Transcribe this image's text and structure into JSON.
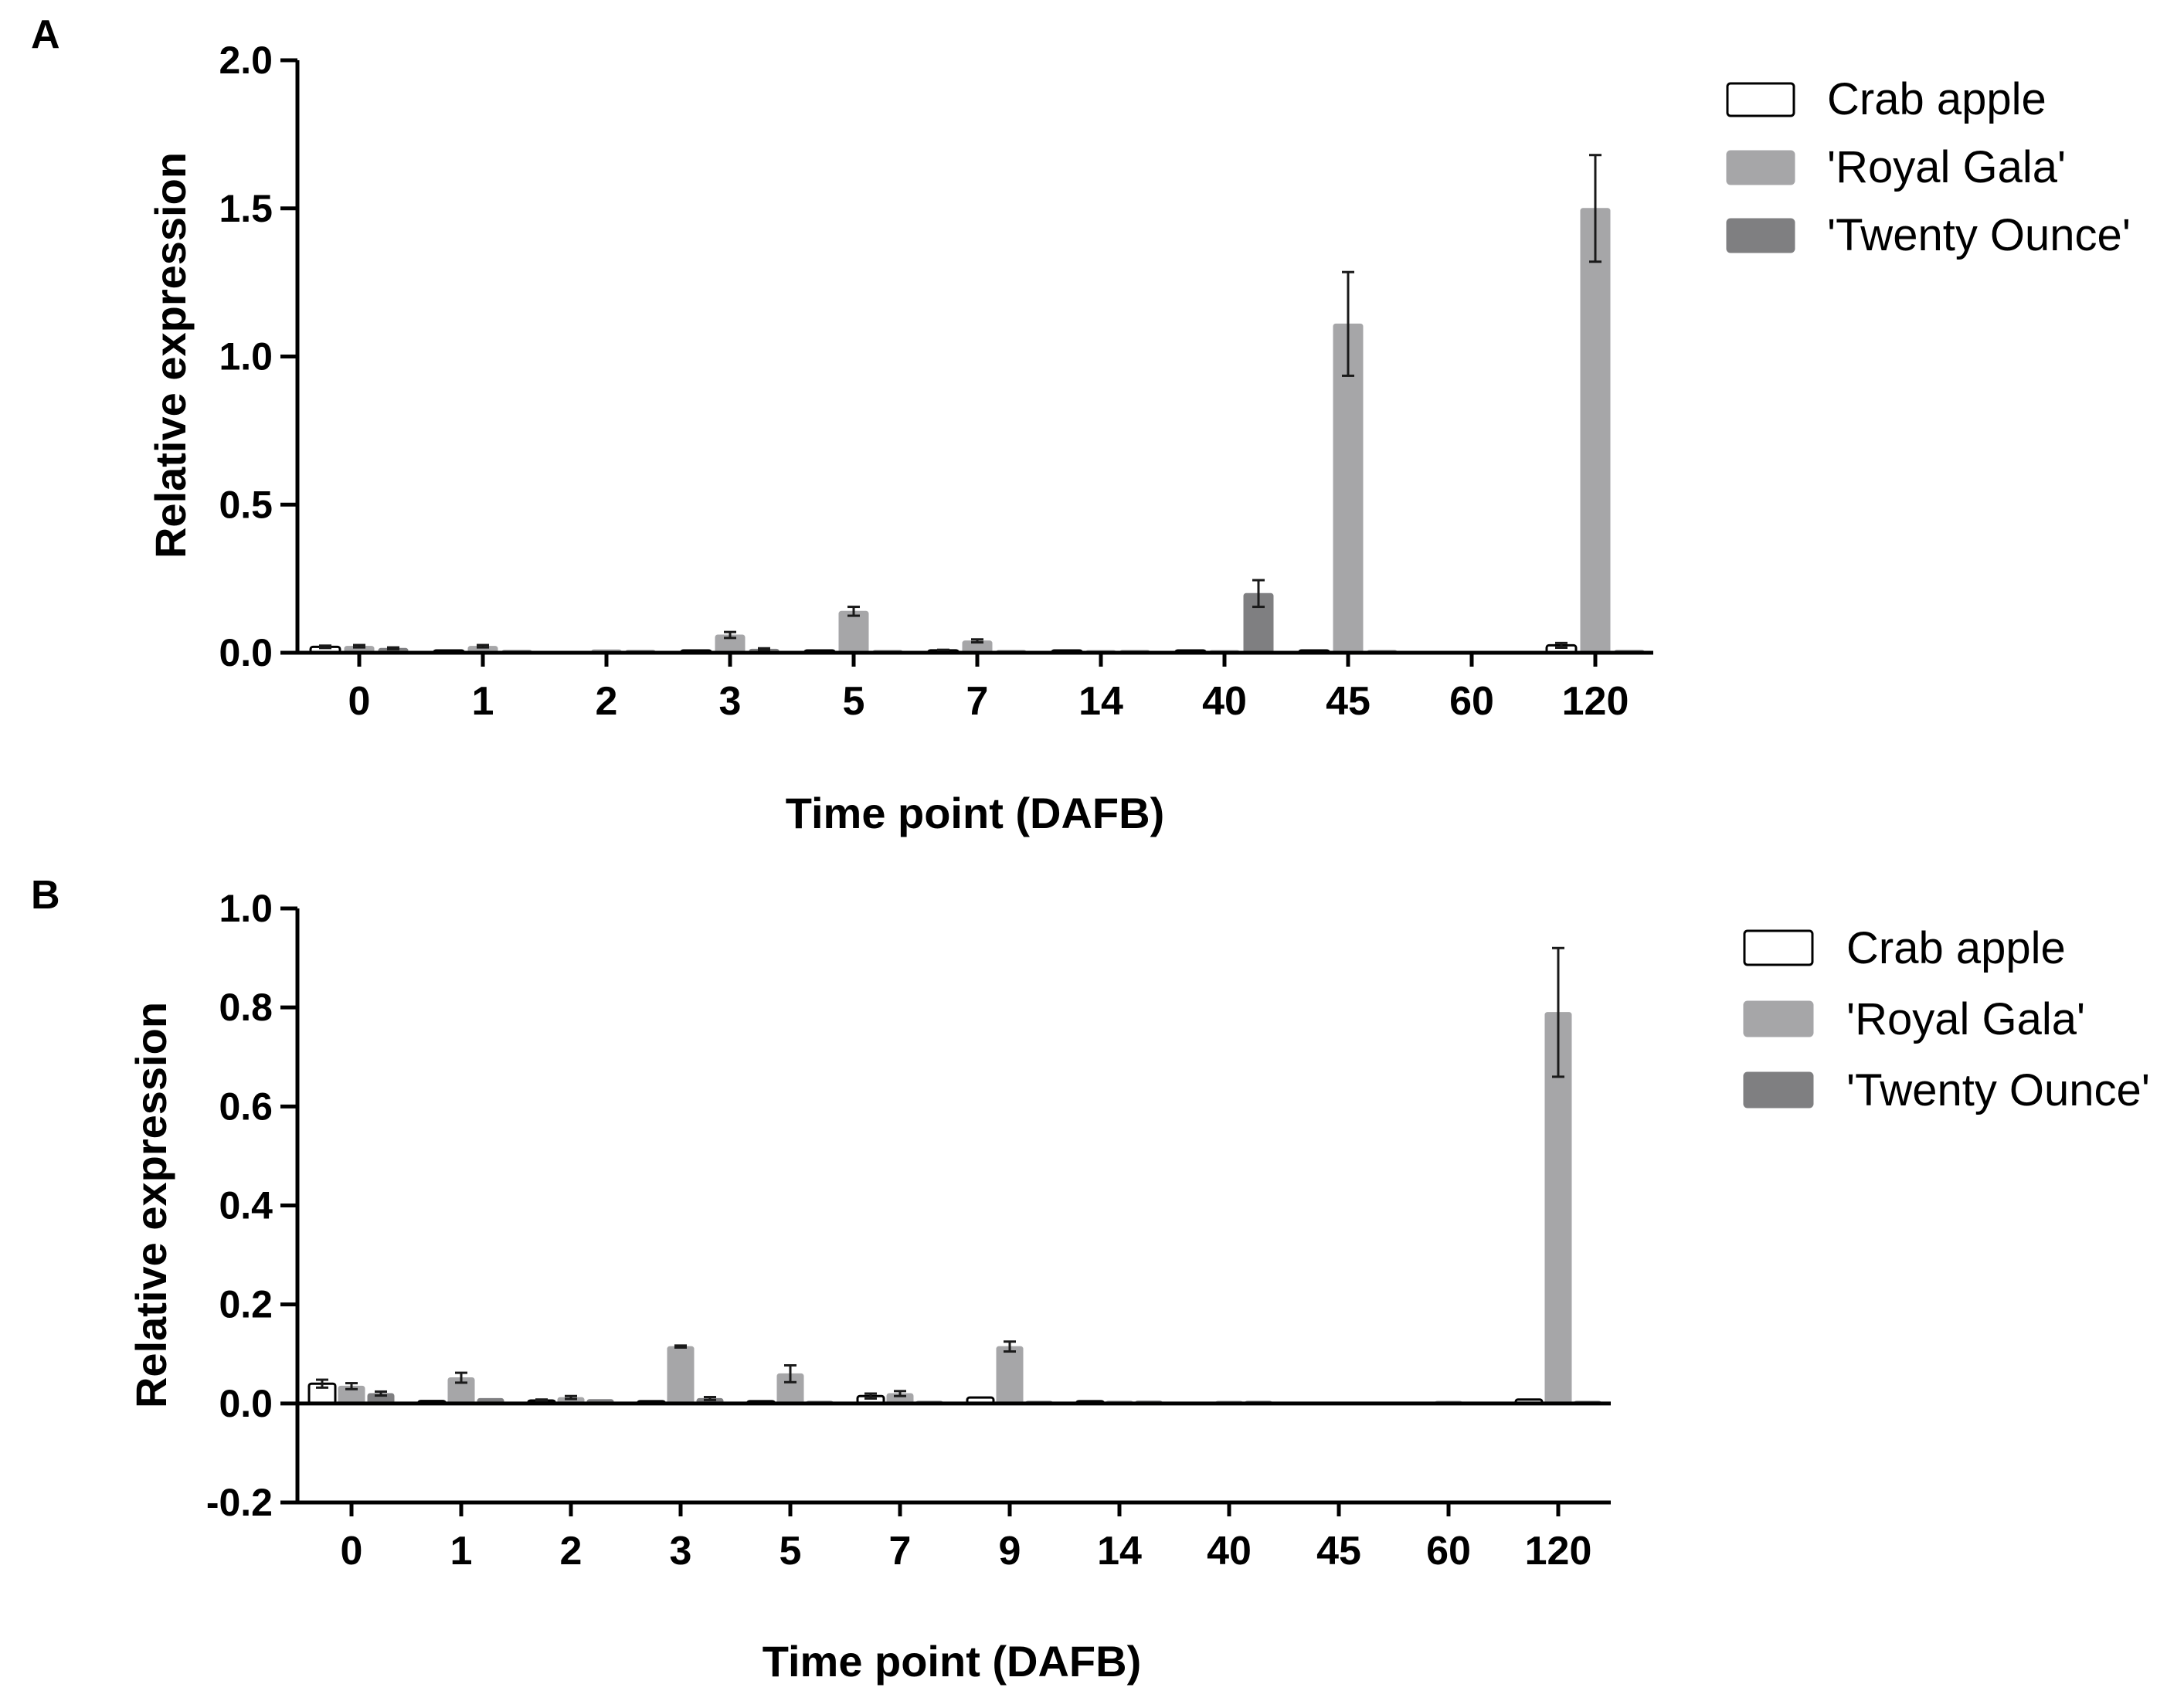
{
  "figure": {
    "panels": [
      "A",
      "B"
    ]
  },
  "colors": {
    "crab_apple_fill": "#ffffff",
    "crab_apple_stroke": "#000000",
    "royal_gala": "#a6a6a8",
    "twenty_ounce": "#7f7f81",
    "axis": "#000000",
    "error_bar": "#1a1a1a"
  },
  "chart_data": [
    {
      "panel": "A",
      "type": "bar",
      "title": "",
      "xlabel": "Time point (DAFB)",
      "ylabel": "Relative expression",
      "categories": [
        "0",
        "1",
        "2",
        "3",
        "5",
        "7",
        "14",
        "40",
        "45",
        "60",
        "120"
      ],
      "ylim": [
        0,
        2.0
      ],
      "yticks": [
        0.0,
        0.5,
        1.0,
        1.5,
        2.0
      ],
      "ytick_labels": [
        "0.0",
        "0.5",
        "1.0",
        "1.5",
        "2.0"
      ],
      "legend": [
        "Crab apple",
        "'Royal Gala'",
        "'Twenty Ounce'"
      ],
      "legend_position": "right",
      "series": [
        {
          "name": "Crab apple",
          "values": [
            0.02,
            0.002,
            0.0,
            0.002,
            0.002,
            0.008,
            0.002,
            0.002,
            0.002,
            0.0,
            0.025
          ],
          "errors": [
            0.004,
            0.0,
            0.0,
            0.0,
            0.0,
            0.002,
            0.0,
            0.0,
            0.0,
            0.0,
            0.008
          ]
        },
        {
          "name": "'Royal Gala'",
          "values": [
            0.022,
            0.022,
            0.01,
            0.06,
            0.14,
            0.04,
            0.004,
            0.002,
            1.11,
            0.0,
            1.5
          ],
          "errors": [
            0.004,
            0.004,
            0.0,
            0.01,
            0.015,
            0.005,
            0.0,
            0.0,
            0.175,
            0.0,
            0.18
          ]
        },
        {
          "name": "'Twenty Ounce'",
          "values": [
            0.015,
            0.008,
            0.008,
            0.012,
            0.004,
            0.004,
            0.004,
            0.2,
            0.004,
            0.0,
            0.008
          ],
          "errors": [
            0.003,
            0.0,
            0.0,
            0.003,
            0.0,
            0.0,
            0.0,
            0.045,
            0.0,
            0.0,
            0.0
          ]
        }
      ]
    },
    {
      "panel": "B",
      "type": "bar",
      "title": "",
      "xlabel": "Time point (DAFB)",
      "ylabel": "Relative expression",
      "categories": [
        "0",
        "1",
        "2",
        "3",
        "5",
        "7",
        "9",
        "14",
        "40",
        "45",
        "60",
        "120"
      ],
      "ylim": [
        -0.2,
        1.0
      ],
      "yticks": [
        -0.2,
        0.0,
        0.2,
        0.4,
        0.6,
        0.8,
        1.0
      ],
      "ytick_labels": [
        "-0.2",
        "0.0",
        "0.2",
        "0.4",
        "0.6",
        "0.8",
        "1.0"
      ],
      "legend": [
        "Crab apple",
        "'Royal Gala'",
        "'Twenty Ounce'"
      ],
      "legend_position": "right",
      "series": [
        {
          "name": "Crab apple",
          "values": [
            0.04,
            0.005,
            0.006,
            0.002,
            0.004,
            0.015,
            0.012,
            0.004,
            0.0,
            0.0,
            0.0,
            0.008
          ],
          "errors": [
            0.008,
            0.0,
            0.002,
            0.0,
            0.0,
            0.005,
            0.0,
            0.0,
            0.0,
            0.0,
            0.0,
            0.0
          ]
        },
        {
          "name": "'Royal Gala'",
          "values": [
            0.035,
            0.052,
            0.012,
            0.115,
            0.06,
            0.02,
            0.115,
            0.005,
            0.003,
            0.0,
            0.004,
            0.79
          ],
          "errors": [
            0.006,
            0.01,
            0.003,
            0.002,
            0.017,
            0.005,
            0.01,
            0.0,
            0.0,
            0.0,
            0.0,
            0.13
          ]
        },
        {
          "name": "'Twenty Ounce'",
          "values": [
            0.02,
            0.01,
            0.008,
            0.01,
            0.004,
            0.003,
            0.003,
            0.005,
            0.003,
            0.0,
            0.0,
            0.003
          ],
          "errors": [
            0.004,
            0.0,
            0.0,
            0.003,
            0.0,
            0.0,
            0.0,
            0.0,
            0.0,
            0.0,
            0.0,
            0.0
          ]
        }
      ]
    }
  ]
}
